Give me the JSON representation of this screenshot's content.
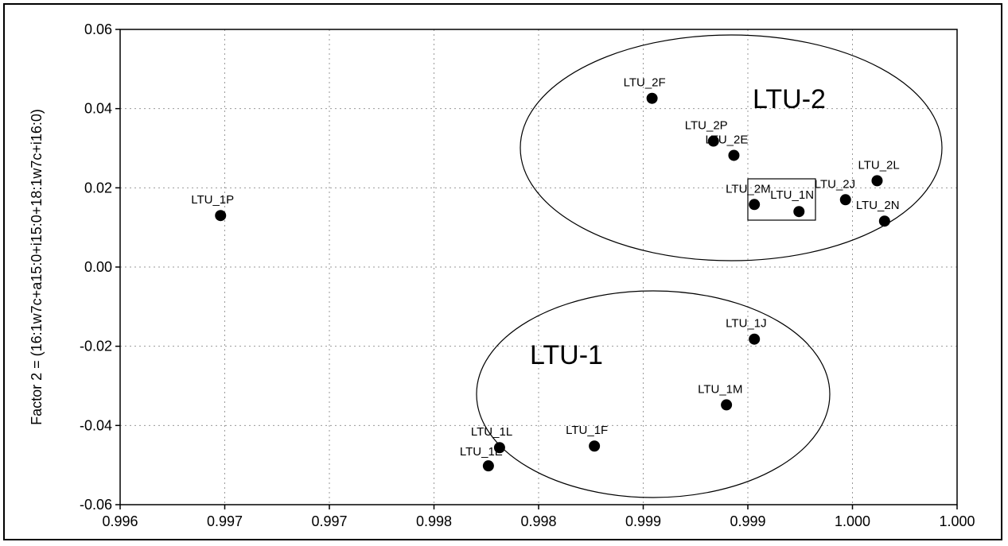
{
  "chart_data": {
    "type": "scatter",
    "title": "",
    "xlabel": "",
    "ylabel": "Factor 2 = (16:1w7c+a15:0+i15:0+18:1w7c+i16:0)",
    "xlim": [
      0.996,
      1.0005
    ],
    "ylim": [
      -0.06,
      0.06
    ],
    "grid": true,
    "x_tick_labels": [
      "0.996",
      "0.997",
      "0.997",
      "0.998",
      "0.998",
      "0.999",
      "0.999",
      "1.000",
      "1.000"
    ],
    "y_tick_labels": [
      "0.06",
      "0.04",
      "0.02",
      "0.00",
      "-0.02",
      "-0.04",
      "-0.06"
    ],
    "points": [
      {
        "label": "LTU_1P",
        "x": 0.99654,
        "y": 0.013
      },
      {
        "label": "LTU_2F",
        "x": 0.99886,
        "y": 0.0426
      },
      {
        "label": "LTU_2P",
        "x": 0.99919,
        "y": 0.0318
      },
      {
        "label": "LTU_2E",
        "x": 0.9993,
        "y": 0.0282
      },
      {
        "label": "LTU_2M",
        "x": 0.99941,
        "y": 0.0158
      },
      {
        "label": "LTU_1N",
        "x": 0.99965,
        "y": 0.014
      },
      {
        "label": "LTU_2J",
        "x": 0.9999,
        "y": 0.017
      },
      {
        "label": "LTU_2L",
        "x": 1.00007,
        "y": 0.0218
      },
      {
        "label": "LTU_2N",
        "x": 1.00011,
        "y": 0.0116
      },
      {
        "label": "LTU_1J",
        "x": 0.99941,
        "y": -0.0182
      },
      {
        "label": "LTU_1M",
        "x": 0.99926,
        "y": -0.0348
      },
      {
        "label": "LTU_1F",
        "x": 0.99855,
        "y": -0.0452
      },
      {
        "label": "LTU_1L",
        "x": 0.99804,
        "y": -0.0456
      },
      {
        "label": "LTU_1E",
        "x": 0.99798,
        "y": -0.0502
      }
    ],
    "groups": [
      {
        "label": "LTU-2"
      },
      {
        "label": "LTU-1"
      }
    ]
  }
}
